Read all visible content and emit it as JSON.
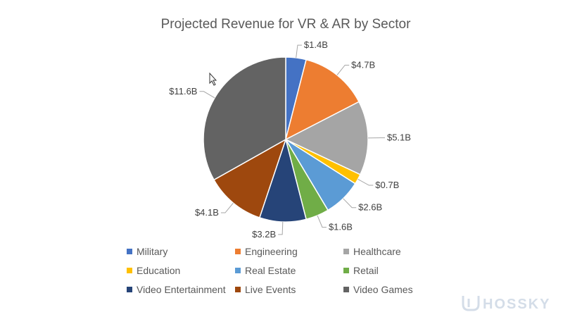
{
  "chart_data": {
    "type": "pie",
    "title": "Projected Revenue for VR & AR by Sector",
    "categories": [
      "Military",
      "Engineering",
      "Healthcare",
      "Education",
      "Real Estate",
      "Retail",
      "Video Entertainment",
      "Live Events",
      "Video Games"
    ],
    "values": [
      1.4,
      4.7,
      5.1,
      0.7,
      2.6,
      1.6,
      3.2,
      4.1,
      11.6
    ],
    "labels": [
      "$1.4B",
      "$4.7B",
      "$5.1B",
      "$0.7B",
      "$2.6B",
      "$1.6B",
      "$3.2B",
      "$4.1B",
      "$11.6B"
    ],
    "colors": [
      "#4472c4",
      "#ed7d31",
      "#a5a5a5",
      "#ffc000",
      "#5b9bd5",
      "#70ad47",
      "#264478",
      "#9e480e",
      "#636363"
    ],
    "legend_position": "bottom"
  },
  "watermark": {
    "text": "HOSSKY",
    "icon": "hossky-logo-icon"
  },
  "cursor": {
    "icon": "mouse-pointer-icon"
  }
}
